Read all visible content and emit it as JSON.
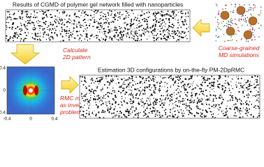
{
  "top_panel": {
    "title": "Results of CGMD of polymer gel network filled with nanoparticles"
  },
  "simulation": {
    "label": "Coarse-grained MD simulations"
  },
  "calculate": {
    "label": "Calculate 2D pattern"
  },
  "pattern": {
    "xticks": [
      "-0.4",
      "0",
      "0.4"
    ],
    "yticks": [
      "0.4",
      "0",
      "-0.4"
    ]
  },
  "rmc": {
    "label": "RMC modeling as inverse problem"
  },
  "bottom_panel": {
    "title": "Estimation 3D configurations by on-the-fly PM-2DpRMC"
  }
}
